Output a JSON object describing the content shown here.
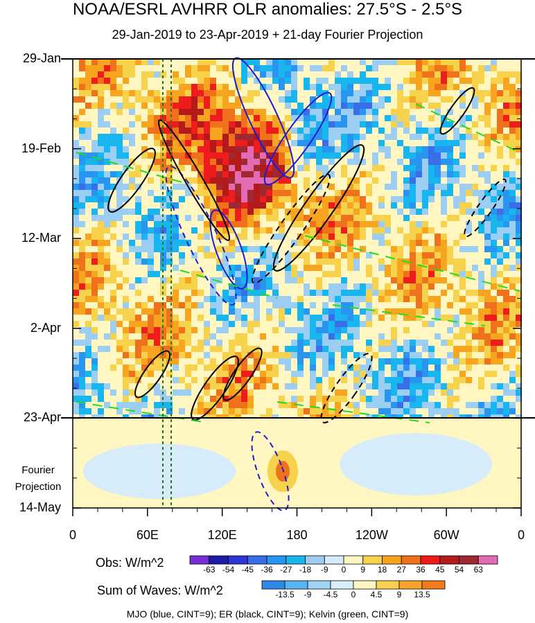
{
  "chart_data": {
    "type": "heatmap",
    "title": "NOAA/ESRL AVHRR OLR anomalies: 27.5°S - 2.5°S",
    "subtitle": "29-Jan-2019 to 23-Apr-2019 + 21-day Fourier Projection",
    "y_ticks": [
      "29-Jan",
      "19-Feb",
      "12-Mar",
      "2-Apr",
      "23-Apr",
      "14-May"
    ],
    "x_ticks": [
      "0",
      "60E",
      "120E",
      "180",
      "120W",
      "60W",
      "0"
    ],
    "projection_label": [
      "Fourier",
      "Projection"
    ],
    "obs_colorbar": {
      "label": "Obs: W/m^2",
      "levels": [
        -63,
        -54,
        -45,
        -36,
        -27,
        -18,
        -9,
        0,
        9,
        18,
        27,
        36,
        45,
        54,
        63
      ],
      "colors": [
        "#7a2fd6",
        "#1c1ca8",
        "#2e37d6",
        "#3a6ee8",
        "#2896f0",
        "#18b6ee",
        "#9ccdf2",
        "#d6ecfa",
        "#fff6c2",
        "#f7d24c",
        "#f7a41e",
        "#f0711c",
        "#ee1c1c",
        "#b51a1a",
        "#a02830",
        "#e36bb4"
      ]
    },
    "waves_colorbar": {
      "label": "Sum of Waves: W/m^2",
      "levels": [
        -13.5,
        -9,
        -4.5,
        0,
        4.5,
        9,
        13.5
      ],
      "colors": [
        "#2e8ae8",
        "#56b4f2",
        "#9fd4f6",
        "#d8eefb",
        "#fff6c2",
        "#f9cf52",
        "#f7a22a",
        "#f07a1c"
      ]
    },
    "footnote": "MJO (blue, CINT=9); ER (black, CINT=9); Kelvin (green, CINT=9)",
    "series_colors": {
      "mjo": "#1c1cd0",
      "er": "#000000",
      "kelvin": "#20dd20"
    }
  }
}
